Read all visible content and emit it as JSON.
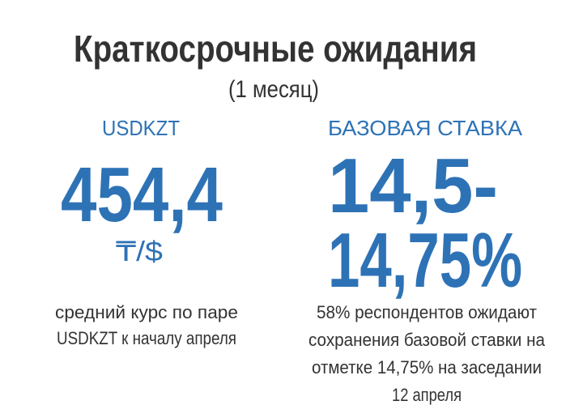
{
  "header": {
    "title": "Краткосрочные ожидания",
    "subtitle": "(1 месяц)"
  },
  "left": {
    "label": "USDKZT",
    "value": "454,4",
    "unit": "₸/$",
    "description": [
      "средний курс по паре",
      "USDKZT к началу апреля"
    ]
  },
  "right": {
    "label": "БАЗОВАЯ СТАВКА",
    "value": [
      "14,5-",
      "14,75%"
    ],
    "description": [
      "58% респондентов ожидают",
      "сохранения базовой ставки на",
      "отметке 14,75% на заседании",
      "12 апреля"
    ]
  }
}
